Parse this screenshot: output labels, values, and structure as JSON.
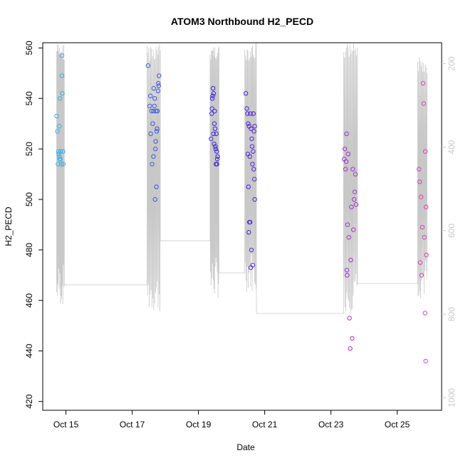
{
  "chart_data": {
    "type": "scatter",
    "title": "ATOM3 Northbound H2_PECD",
    "xlabel": "Date",
    "ylabel": "H2_PECD",
    "ylim": [
      420,
      560
    ],
    "y_ticks": [
      420,
      440,
      460,
      480,
      500,
      520,
      540,
      560
    ],
    "x_ticks": [
      {
        "day": 15,
        "label": "Oct 15"
      },
      {
        "day": 17,
        "label": "Oct 17"
      },
      {
        "day": 19,
        "label": "Oct 19"
      },
      {
        "day": 21,
        "label": "Oct 21"
      },
      {
        "day": 23,
        "label": "Oct 23"
      },
      {
        "day": 25,
        "label": "Oct 25"
      }
    ],
    "secondary_axis": {
      "side": "right",
      "reversed": true,
      "ticks": [
        200,
        400,
        600,
        800,
        1000
      ],
      "range_at_top": 150,
      "range_at_bottom": 1030
    },
    "point_color_start": "#3ab0e8",
    "point_color_mid": "#3a1ee0",
    "point_color_end": "#e040c0",
    "line_color": "#c8c8c8",
    "series": [
      {
        "name": "H2_PECD",
        "x": [
          14.72,
          14.74,
          14.76,
          14.77,
          14.78,
          14.8,
          14.8,
          14.81,
          14.82,
          14.83,
          14.84,
          14.86,
          14.88,
          14.88,
          14.89,
          14.91,
          14.92,
          17.48,
          17.53,
          17.55,
          17.56,
          17.58,
          17.6,
          17.62,
          17.64,
          17.64,
          17.65,
          17.67,
          17.68,
          17.69,
          17.7,
          17.71,
          17.72,
          17.73,
          17.74,
          17.75,
          17.76,
          17.78,
          17.79,
          17.8,
          17.81,
          19.38,
          19.4,
          19.41,
          19.42,
          19.43,
          19.44,
          19.45,
          19.46,
          19.47,
          19.48,
          19.49,
          19.5,
          19.51,
          19.52,
          19.53,
          19.54,
          19.55,
          19.56,
          19.57,
          19.58,
          20.43,
          20.46,
          20.48,
          20.49,
          20.5,
          20.51,
          20.52,
          20.53,
          20.54,
          20.55,
          20.56,
          20.57,
          20.58,
          20.59,
          20.6,
          20.61,
          20.62,
          20.63,
          20.64,
          20.65,
          20.66,
          20.67,
          20.68,
          20.69,
          20.7,
          20.7,
          23.4,
          23.42,
          23.44,
          23.46,
          23.47,
          23.48,
          23.49,
          23.5,
          23.52,
          23.54,
          23.56,
          23.58,
          23.6,
          23.62,
          23.64,
          23.66,
          23.68,
          23.7,
          23.72,
          23.74,
          23.76,
          25.66,
          25.68,
          25.7,
          25.72,
          25.74,
          25.76,
          25.78,
          25.8,
          25.82,
          25.84,
          25.85,
          25.86,
          25.87,
          25.88
        ],
        "y": [
          533,
          527,
          514,
          519,
          518,
          517,
          529,
          516,
          540,
          516,
          519,
          514,
          549,
          557,
          542,
          519,
          514,
          553,
          537,
          541,
          526,
          535,
          514,
          530,
          535,
          517,
          544,
          537,
          540,
          500,
          520,
          523,
          535,
          505,
          527,
          528,
          535,
          543,
          546,
          545,
          549,
          524,
          534,
          536,
          540,
          541,
          544,
          526,
          542,
          522,
          530,
          535,
          528,
          521,
          520,
          514,
          526,
          519,
          514,
          516,
          517,
          542,
          536,
          534,
          518,
          530,
          505,
          487,
          529,
          491,
          517,
          491,
          534,
          473,
          528,
          480,
          524,
          521,
          514,
          474,
          519,
          534,
          512,
          527,
          508,
          500,
          529,
          516,
          520,
          512,
          515,
          526,
          472,
          470,
          490,
          518,
          485,
          453,
          441,
          476,
          497,
          445,
          512,
          488,
          500,
          503,
          510,
          498,
          512,
          507,
          475,
          501,
          470,
          489,
          546,
          538,
          485,
          455,
          519,
          436,
          497,
          478
        ]
      }
    ]
  }
}
